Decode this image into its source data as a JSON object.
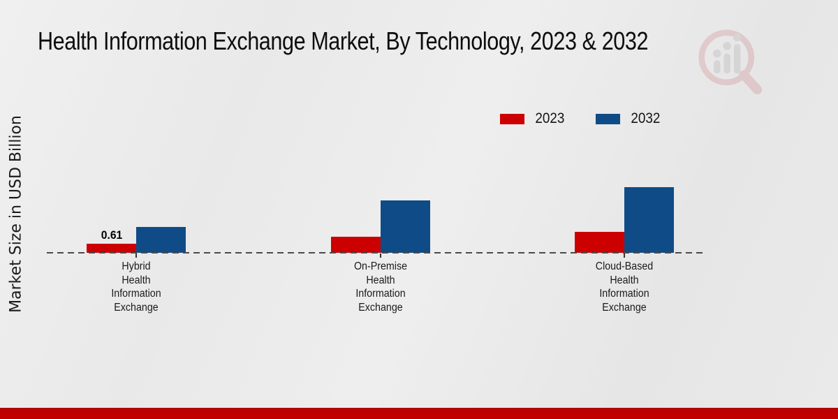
{
  "title": "Health Information Exchange Market, By Technology, 2023 & 2032",
  "y_axis_label": "Market Size in USD Billion",
  "colors": {
    "series_2023": "#cc0000",
    "series_2032": "#0f4c87",
    "bottom_band": "#c00000",
    "baseline": "#4a4a4a",
    "background": "#e9e9e9",
    "text": "#111111",
    "watermark_red": "#b8323c",
    "watermark_gray": "#8f8f8f"
  },
  "legend": {
    "position": "top-right",
    "items": [
      {
        "label": "2023",
        "color": "#cc0000"
      },
      {
        "label": "2032",
        "color": "#0f4c87"
      }
    ]
  },
  "watermark": {
    "name": "magnifier-bar-chart-logo"
  },
  "chart_data": {
    "type": "bar",
    "title": "Health Information Exchange Market, By Technology, 2023 & 2032",
    "xlabel": "",
    "ylabel": "Market Size in USD Billion",
    "categories": [
      "Hybrid Health Information Exchange",
      "On-Premise Health Information Exchange",
      "Cloud-Based Health Information Exchange"
    ],
    "category_lines": [
      [
        "Hybrid",
        "Health",
        "Information",
        "Exchange"
      ],
      [
        "On-Premise",
        "Health",
        "Information",
        "Exchange"
      ],
      [
        "Cloud-Based",
        "Health",
        "Information",
        "Exchange"
      ]
    ],
    "series": [
      {
        "name": "2023",
        "color": "#cc0000",
        "values": [
          0.61,
          1.1,
          1.4
        ]
      },
      {
        "name": "2032",
        "color": "#0f4c87",
        "values": [
          1.74,
          3.5,
          4.4
        ]
      }
    ],
    "data_labels": [
      {
        "series_index": 0,
        "category_index": 0,
        "text": "0.61"
      }
    ],
    "ylim": [
      0,
      5
    ],
    "grid": false,
    "axes_hidden": true,
    "baseline_style": "dashed",
    "legend_position": "top-right",
    "note": "Only the 0.61 value is labeled in the chart; other values estimated from bar heights."
  }
}
